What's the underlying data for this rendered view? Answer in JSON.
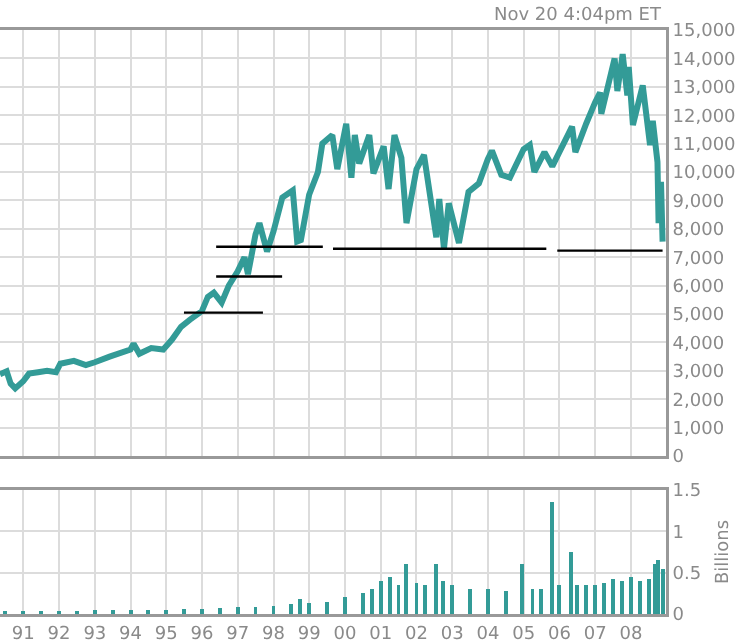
{
  "chart_data": [
    {
      "type": "line",
      "annotations": [
        "Nov 20 4:04pm ET"
      ],
      "xlim": [
        "1990-05-08",
        "2008-12-25"
      ],
      "xticks": [
        {
          "value": "1991-01-01",
          "label": null
        },
        {
          "value": "1992-01-01",
          "label": null
        },
        {
          "value": "1993-01-01",
          "label": null
        },
        {
          "value": "1994-01-01",
          "label": null
        },
        {
          "value": "1995-01-01",
          "label": null
        },
        {
          "value": "1996-01-01",
          "label": null
        },
        {
          "value": "1997-01-01",
          "label": null
        },
        {
          "value": "1998-01-01",
          "label": null
        },
        {
          "value": "1999-01-01",
          "label": null
        },
        {
          "value": "2000-01-01",
          "label": null
        },
        {
          "value": "2001-01-01",
          "label": null
        },
        {
          "value": "2002-01-01",
          "label": null
        },
        {
          "value": "2003-01-01",
          "label": null
        },
        {
          "value": "2004-01-01",
          "label": null
        },
        {
          "value": "2005-01-01",
          "label": null
        },
        {
          "value": "2006-01-01",
          "label": null
        },
        {
          "value": "2007-01-01",
          "label": null
        },
        {
          "value": "2008-01-01",
          "label": null
        }
      ],
      "ylim": [
        0,
        15000
      ],
      "yticks": [
        {
          "value": 0,
          "label": "0"
        },
        {
          "value": 1000,
          "label": "1,000"
        },
        {
          "value": 2000,
          "label": "2,000"
        },
        {
          "value": 3000,
          "label": "3,000"
        },
        {
          "value": 4000,
          "label": "4,000"
        },
        {
          "value": 5000,
          "label": "5,000"
        },
        {
          "value": 6000,
          "label": "6,000"
        },
        {
          "value": 7000,
          "label": "7,000"
        },
        {
          "value": 8000,
          "label": "8,000"
        },
        {
          "value": 9000,
          "label": "9,000"
        },
        {
          "value": 10000,
          "label": "10,000"
        },
        {
          "value": 11000,
          "label": "11,000"
        },
        {
          "value": 12000,
          "label": "12,000"
        },
        {
          "value": 13000,
          "label": "13,000"
        },
        {
          "value": 14000,
          "label": "14,000"
        },
        {
          "value": 15000,
          "label": "15,000"
        }
      ],
      "grid": true,
      "tick_labels": "y",
      "marker": "none",
      "line_style": "solid",
      "series": [
        {
          "color": "#339b97",
          "x": [
            "1990-05-08",
            "1990-07-15",
            "1990-08-25",
            "1990-10-11",
            "1990-12-31",
            "1991-03-01",
            "1991-06-01",
            "1991-09-01",
            "1991-12-01",
            "1992-01-15",
            "1992-06-01",
            "1992-10-01",
            "1993-01-01",
            "1993-06-01",
            "1993-12-31",
            "1994-02-01",
            "1994-04-01",
            "1994-08-01",
            "1994-12-01",
            "1995-03-01",
            "1995-06-01",
            "1995-09-01",
            "1995-12-31",
            "1996-03-01",
            "1996-05-01",
            "1996-07-20",
            "1996-10-01",
            "1996-12-31",
            "1997-03-10",
            "1997-04-15",
            "1997-07-01",
            "1997-08-10",
            "1997-10-27",
            "1997-12-31",
            "1998-04-01",
            "1998-07-17",
            "1998-08-31",
            "1998-10-08",
            "1998-12-31",
            "1999-03-31",
            "1999-05-15",
            "1999-08-25",
            "1999-10-15",
            "2000-01-14",
            "2000-03-07",
            "2000-04-11",
            "2000-05-26",
            "2000-09-06",
            "2000-10-18",
            "2001-01-31",
            "2001-03-22",
            "2001-05-21",
            "2001-07-31",
            "2001-09-21",
            "2002-01-01",
            "2002-03-19",
            "2002-07-23",
            "2002-08-22",
            "2002-10-09",
            "2002-11-27",
            "2003-03-11",
            "2003-06-17",
            "2003-10-01",
            "2003-12-31",
            "2004-02-11",
            "2004-05-17",
            "2004-08-13",
            "2004-12-31",
            "2005-03-04",
            "2005-04-20",
            "2005-08-01",
            "2005-10-20",
            "2005-12-31",
            "2006-05-10",
            "2006-06-13",
            "2006-10-01",
            "2006-12-31",
            "2007-02-20",
            "2007-03-05",
            "2007-07-19",
            "2007-08-16",
            "2007-10-09",
            "2007-11-26",
            "2007-12-10",
            "2008-01-22",
            "2008-05-01",
            "2008-07-15",
            "2008-08-12",
            "2008-09-29",
            "2008-10-10",
            "2008-11-04",
            "2008-11-20"
          ],
          "values": [
            2880,
            2980,
            2550,
            2380,
            2630,
            2900,
            2950,
            3000,
            2950,
            3250,
            3350,
            3200,
            3300,
            3500,
            3750,
            3950,
            3600,
            3800,
            3750,
            4100,
            4550,
            4800,
            5100,
            5600,
            5750,
            5400,
            6000,
            6500,
            7000,
            6400,
            7800,
            8200,
            7200,
            7900,
            9100,
            9350,
            7550,
            7600,
            9200,
            10000,
            11000,
            11300,
            10100,
            11700,
            9800,
            11300,
            10300,
            11300,
            9950,
            10900,
            9400,
            11300,
            10500,
            8200,
            10100,
            10600,
            7700,
            9050,
            7300,
            8900,
            7500,
            9300,
            9600,
            10450,
            10750,
            9900,
            9800,
            10800,
            10950,
            10000,
            10700,
            10200,
            10700,
            11600,
            10700,
            11700,
            12450,
            12800,
            12050,
            14000,
            12850,
            14150,
            12700,
            13700,
            11650,
            13050,
            10950,
            11800,
            10350,
            8200,
            9650,
            7550
          ]
        },
        {
          "color": "#000000",
          "x": [
            "1995-07-01",
            "1997-09-15"
          ],
          "values": [
            5050,
            5050
          ]
        },
        {
          "color": "#000000",
          "x": [
            "1996-05-25",
            "1998-03-30"
          ],
          "values": [
            6320,
            6320
          ]
        },
        {
          "color": "#000000",
          "x": [
            "1996-05-25",
            "1999-05-20"
          ],
          "values": [
            7370,
            7370
          ]
        },
        {
          "color": "#000000",
          "x": [
            "1999-09-01",
            "2005-08-20"
          ],
          "values": [
            7300,
            7300
          ]
        },
        {
          "color": "#000000",
          "x": [
            "2005-12-10",
            "2008-11-20"
          ],
          "values": [
            7230,
            7230
          ]
        }
      ]
    },
    {
      "type": "bar",
      "ylabel": "Billions",
      "xlim": [
        "1990-05-08",
        "2008-12-25"
      ],
      "xticks": [
        {
          "value": "1991-01-01",
          "label": "91"
        },
        {
          "value": "1992-01-01",
          "label": "92"
        },
        {
          "value": "1993-01-01",
          "label": "93"
        },
        {
          "value": "1994-01-01",
          "label": "94"
        },
        {
          "value": "1995-01-01",
          "label": "95"
        },
        {
          "value": "1996-01-01",
          "label": "96"
        },
        {
          "value": "1997-01-01",
          "label": "97"
        },
        {
          "value": "1998-01-01",
          "label": "98"
        },
        {
          "value": "1999-01-01",
          "label": "99"
        },
        {
          "value": "2000-01-01",
          "label": "00"
        },
        {
          "value": "2001-01-01",
          "label": "01"
        },
        {
          "value": "2002-01-01",
          "label": "02"
        },
        {
          "value": "2003-01-01",
          "label": "03"
        },
        {
          "value": "2004-01-01",
          "label": "04"
        },
        {
          "value": "2005-01-01",
          "label": "05"
        },
        {
          "value": "2006-01-01",
          "label": "06"
        },
        {
          "value": "2007-01-01",
          "label": "07"
        },
        {
          "value": "2008-01-01",
          "label": "08"
        }
      ],
      "ylim": [
        0,
        1.5
      ],
      "yticks": [
        0,
        {
          "value": 0.5,
          "label": "0.5"
        },
        1,
        1.5
      ],
      "grid": true,
      "series": [
        {
          "color": "#339b97",
          "x": [
            "1990-07-01",
            "1991-01-01",
            "1991-07-01",
            "1992-01-01",
            "1992-07-01",
            "1993-01-01",
            "1993-07-01",
            "1994-01-01",
            "1994-07-01",
            "1995-01-01",
            "1995-07-01",
            "1996-01-01",
            "1996-07-01",
            "1997-01-01",
            "1997-07-01",
            "1998-01-01",
            "1998-07-01",
            "1998-10-01",
            "1999-01-01",
            "1999-07-01",
            "2000-01-01",
            "2000-07-01",
            "2000-10-01",
            "2001-01-01",
            "2001-04-01",
            "2001-07-01",
            "2001-09-17",
            "2002-01-01",
            "2002-04-01",
            "2002-07-24",
            "2002-10-01",
            "2003-01-01",
            "2003-07-01",
            "2004-01-01",
            "2004-07-01",
            "2004-12-17",
            "2005-04-01",
            "2005-07-01",
            "2005-10-14",
            "2006-01-01",
            "2006-05-01",
            "2006-07-01",
            "2006-10-01",
            "2007-01-01",
            "2007-04-01",
            "2007-07-01",
            "2007-10-01",
            "2008-01-01",
            "2008-04-01",
            "2008-07-01",
            "2008-09-01",
            "2008-10-01",
            "2008-11-20"
          ],
          "values": [
            0.04,
            0.04,
            0.04,
            0.04,
            0.04,
            0.05,
            0.05,
            0.05,
            0.05,
            0.05,
            0.06,
            0.06,
            0.07,
            0.08,
            0.09,
            0.1,
            0.12,
            0.18,
            0.13,
            0.15,
            0.2,
            0.25,
            0.3,
            0.4,
            0.45,
            0.35,
            0.6,
            0.38,
            0.35,
            0.6,
            0.4,
            0.35,
            0.3,
            0.3,
            0.28,
            0.6,
            0.3,
            0.3,
            1.35,
            0.35,
            0.75,
            0.35,
            0.35,
            0.35,
            0.38,
            0.42,
            0.4,
            0.45,
            0.4,
            0.42,
            0.6,
            0.65,
            0.55
          ]
        }
      ]
    }
  ]
}
